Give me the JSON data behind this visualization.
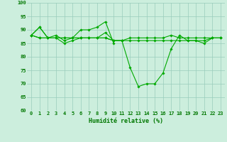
{
  "xlabel": "Humidité relative (%)",
  "x_values": [
    0,
    1,
    2,
    3,
    4,
    5,
    6,
    7,
    8,
    9,
    10,
    11,
    12,
    13,
    14,
    15,
    16,
    17,
    18,
    19,
    20,
    21,
    22,
    23
  ],
  "line1": [
    88,
    91,
    87,
    88,
    86,
    87,
    90,
    90,
    91,
    93,
    85,
    null,
    null,
    null,
    null,
    null,
    null,
    null,
    null,
    null,
    null,
    null,
    null,
    null
  ],
  "line2": [
    88,
    91,
    87,
    87,
    85,
    86,
    87,
    87,
    87,
    87,
    86,
    86,
    86,
    86,
    86,
    86,
    86,
    86,
    86,
    86,
    86,
    86,
    87,
    87
  ],
  "line3": [
    88,
    87,
    87,
    87,
    87,
    87,
    87,
    87,
    87,
    87,
    86,
    86,
    76,
    69,
    70,
    70,
    74,
    83,
    88,
    86,
    86,
    85,
    87,
    87
  ],
  "line4": [
    88,
    87,
    87,
    87,
    87,
    87,
    87,
    87,
    87,
    89,
    86,
    86,
    87,
    87,
    87,
    87,
    87,
    88,
    87,
    87,
    87,
    87,
    87,
    87
  ],
  "ylim": [
    60,
    100
  ],
  "yticks": [
    60,
    65,
    70,
    75,
    80,
    85,
    90,
    95,
    100
  ],
  "xticks": [
    0,
    1,
    2,
    3,
    4,
    5,
    6,
    7,
    8,
    9,
    10,
    11,
    12,
    13,
    14,
    15,
    16,
    17,
    18,
    19,
    20,
    21,
    22,
    23
  ],
  "line_color": "#00aa00",
  "bg_color": "#cceedd",
  "grid_color": "#99ccbb",
  "text_color": "#007700",
  "axis_fontsize": 6,
  "tick_fontsize": 5
}
